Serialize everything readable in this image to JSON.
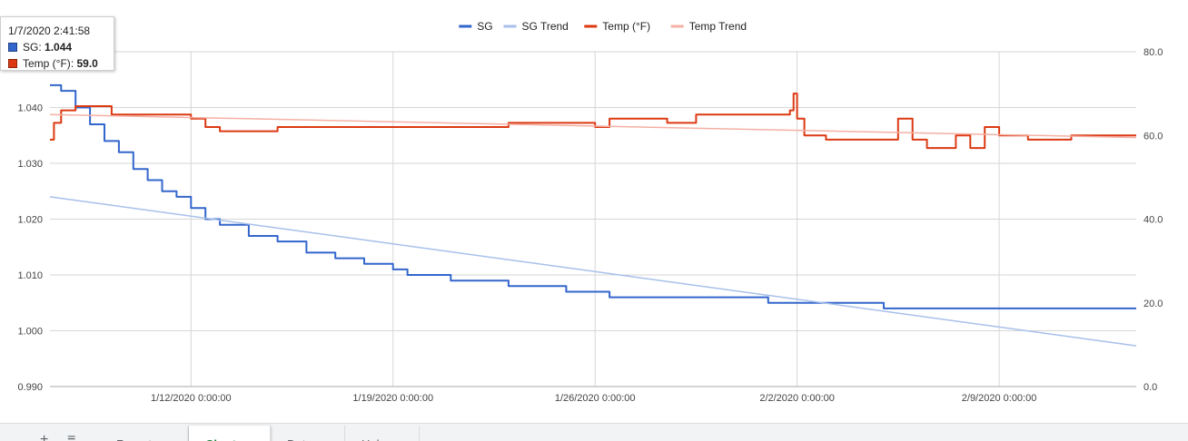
{
  "tooltip": {
    "datetime": "1/7/2020 2:41:58",
    "rows": [
      {
        "label": "SG",
        "value": "1.044",
        "color": "#3366cc"
      },
      {
        "label": "Temp (°F)",
        "value": "59.0",
        "color": "#dc3912"
      }
    ]
  },
  "tabs": {
    "add_icon": "plus-icon",
    "list_icon": "menu-icon",
    "items": [
      {
        "label": "Report",
        "active": false
      },
      {
        "label": "Chart",
        "active": true
      },
      {
        "label": "Data",
        "active": false
      },
      {
        "label": "Help",
        "active": false
      }
    ]
  },
  "chart_data": {
    "type": "line",
    "legend_position": "top",
    "grid": true,
    "x_range": [
      "1/7/2020 2:41:58",
      "2/13/2020 18:00:00"
    ],
    "x_ticks": [
      "1/12/2020 0:00:00",
      "1/19/2020 0:00:00",
      "1/26/2020 0:00:00",
      "2/2/2020 0:00:00",
      "2/9/2020 0:00:00"
    ],
    "y_left": {
      "range": [
        0.99,
        1.05
      ],
      "ticks": [
        "0.990",
        "1.000",
        "1.010",
        "1.020",
        "1.030",
        "1.040"
      ]
    },
    "y_right": {
      "range": [
        0,
        80
      ],
      "ticks": [
        "0.0",
        "20.0",
        "40.0",
        "60.0",
        "80.0"
      ]
    },
    "series": [
      {
        "name": "SG",
        "axis": "left",
        "color": "#3366cc",
        "width": 2,
        "step": true,
        "points": [
          [
            "1/7/2020 2:41:58",
            1.044
          ],
          [
            "1/7/2020 12:00:00",
            1.043
          ],
          [
            "1/8/2020 0:00:00",
            1.04
          ],
          [
            "1/8/2020 12:00:00",
            1.037
          ],
          [
            "1/9/2020 0:00:00",
            1.034
          ],
          [
            "1/9/2020 12:00:00",
            1.032
          ],
          [
            "1/10/2020 0:00:00",
            1.029
          ],
          [
            "1/10/2020 12:00:00",
            1.027
          ],
          [
            "1/11/2020 0:00:00",
            1.025
          ],
          [
            "1/11/2020 12:00:00",
            1.024
          ],
          [
            "1/12/2020 0:00:00",
            1.022
          ],
          [
            "1/12/2020 12:00:00",
            1.02
          ],
          [
            "1/13/2020 0:00:00",
            1.019
          ],
          [
            "1/14/2020 0:00:00",
            1.017
          ],
          [
            "1/15/2020 0:00:00",
            1.016
          ],
          [
            "1/16/2020 0:00:00",
            1.014
          ],
          [
            "1/17/2020 0:00:00",
            1.013
          ],
          [
            "1/18/2020 0:00:00",
            1.012
          ],
          [
            "1/19/2020 0:00:00",
            1.011
          ],
          [
            "1/19/2020 12:00:00",
            1.01
          ],
          [
            "1/21/2020 0:00:00",
            1.009
          ],
          [
            "1/23/2020 0:00:00",
            1.008
          ],
          [
            "1/25/2020 0:00:00",
            1.007
          ],
          [
            "1/26/2020 12:00:00",
            1.006
          ],
          [
            "1/29/2020 0:00:00",
            1.006
          ],
          [
            "2/1/2020 0:00:00",
            1.005
          ],
          [
            "2/5/2020 0:00:00",
            1.004
          ],
          [
            "2/13/2020 18:00:00",
            1.004
          ]
        ]
      },
      {
        "name": "SG Trend",
        "axis": "left",
        "color": "#a8c0ea",
        "width": 1.5,
        "step": false,
        "points": [
          [
            "1/7/2020 2:41:58",
            1.024
          ],
          [
            "2/13/2020 18:00:00",
            0.9973
          ]
        ]
      },
      {
        "name": "Temp (°F)",
        "axis": "right",
        "color": "#dc3912",
        "width": 2,
        "step": true,
        "points": [
          [
            "1/7/2020 2:41:58",
            59.0
          ],
          [
            "1/7/2020 6:00:00",
            63.0
          ],
          [
            "1/7/2020 12:00:00",
            66.0
          ],
          [
            "1/8/2020 0:00:00",
            67.0
          ],
          [
            "1/9/2020 6:00:00",
            65.0
          ],
          [
            "1/12/2020 0:00:00",
            64.0
          ],
          [
            "1/12/2020 12:00:00",
            62.0
          ],
          [
            "1/13/2020 0:00:00",
            61.0
          ],
          [
            "1/15/2020 0:00:00",
            62.0
          ],
          [
            "1/20/2020 0:00:00",
            62.0
          ],
          [
            "1/23/2020 0:00:00",
            63.0
          ],
          [
            "1/26/2020 0:00:00",
            62.0
          ],
          [
            "1/26/2020 12:00:00",
            64.0
          ],
          [
            "1/28/2020 12:00:00",
            63.0
          ],
          [
            "1/29/2020 12:00:00",
            65.0
          ],
          [
            "2/1/2020 18:00:00",
            66.0
          ],
          [
            "2/1/2020 21:00:00",
            70.0
          ],
          [
            "2/2/2020 0:00:00",
            64.0
          ],
          [
            "2/2/2020 6:00:00",
            60.0
          ],
          [
            "2/3/2020 0:00:00",
            59.0
          ],
          [
            "2/5/2020 6:00:00",
            59.0
          ],
          [
            "2/5/2020 12:00:00",
            64.0
          ],
          [
            "2/6/2020 0:00:00",
            59.0
          ],
          [
            "2/6/2020 12:00:00",
            57.0
          ],
          [
            "2/7/2020 12:00:00",
            60.0
          ],
          [
            "2/8/2020 0:00:00",
            57.0
          ],
          [
            "2/8/2020 12:00:00",
            62.0
          ],
          [
            "2/9/2020 0:00:00",
            60.0
          ],
          [
            "2/10/2020 0:00:00",
            59.0
          ],
          [
            "2/11/2020 12:00:00",
            60.0
          ],
          [
            "2/13/2020 18:00:00",
            60.0
          ]
        ]
      },
      {
        "name": "Temp Trend",
        "axis": "right",
        "color": "#f4b0a4",
        "width": 1.5,
        "step": false,
        "points": [
          [
            "1/7/2020 2:41:58",
            65.0
          ],
          [
            "2/13/2020 18:00:00",
            59.5
          ]
        ]
      }
    ]
  }
}
